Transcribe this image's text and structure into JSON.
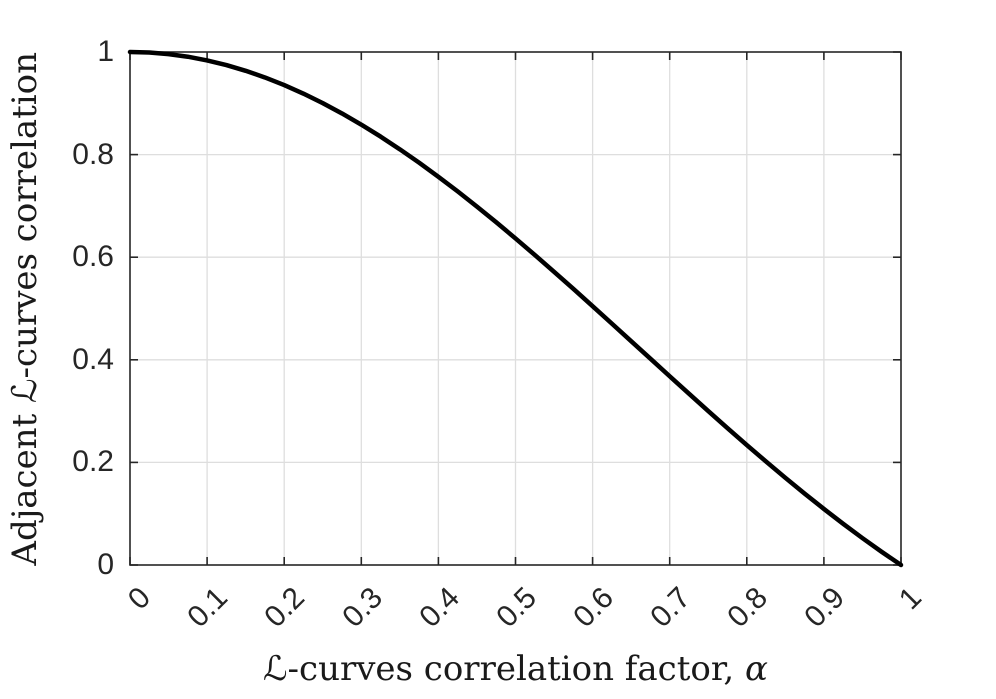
{
  "figure": {
    "background": "#ffffff",
    "axis_color": "#262626",
    "grid_color": "#dedede",
    "tick_label_color": "#262626",
    "curve_color": "#000000"
  },
  "chart_data": {
    "type": "line",
    "title": "",
    "xlabel": "ℒ-curves correlation factor, α",
    "xlabel_main": "ℒ-curves correlation factor, ",
    "xlabel_var": "α",
    "ylabel": "Adjacent ℒ-curves correlation",
    "xlim": [
      0,
      1
    ],
    "ylim": [
      0,
      1
    ],
    "grid": true,
    "legend": "none",
    "x_ticks": {
      "values": [
        0,
        0.1,
        0.2,
        0.3,
        0.4,
        0.5,
        0.6,
        0.7,
        0.8,
        0.9,
        1
      ],
      "labels": [
        "0",
        "0.1",
        "0.2",
        "0.3",
        "0.4",
        "0.5",
        "0.6",
        "0.7",
        "0.8",
        "0.9",
        "1"
      ],
      "rotation_deg": 45
    },
    "y_ticks": {
      "values": [
        0,
        0.2,
        0.4,
        0.6,
        0.8,
        1
      ],
      "labels": [
        "0",
        "0.2",
        "0.4",
        "0.6",
        "0.8",
        "1"
      ]
    },
    "series": [
      {
        "name": "adjacent-L-curves-correlation",
        "color": "#000000",
        "line_width": 4.5,
        "x": [
          0,
          0.025,
          0.05,
          0.075,
          0.1,
          0.125,
          0.15,
          0.175,
          0.2,
          0.225,
          0.25,
          0.275,
          0.3,
          0.325,
          0.35,
          0.375,
          0.4,
          0.425,
          0.45,
          0.475,
          0.5,
          0.525,
          0.55,
          0.575,
          0.6,
          0.625,
          0.65,
          0.675,
          0.7,
          0.725,
          0.75,
          0.775,
          0.8,
          0.825,
          0.85,
          0.875,
          0.9,
          0.925,
          0.95,
          0.975,
          1
        ],
        "y": [
          1,
          0.999,
          0.9959,
          0.9908,
          0.9836,
          0.9745,
          0.9634,
          0.9504,
          0.9355,
          0.9188,
          0.9003,
          0.8802,
          0.8584,
          0.8351,
          0.8103,
          0.7842,
          0.7568,
          0.7283,
          0.6986,
          0.6681,
          0.6366,
          0.6044,
          0.5716,
          0.5383,
          0.5046,
          0.4705,
          0.4363,
          0.4021,
          0.3679,
          0.3339,
          0.3001,
          0.2667,
          0.2339,
          0.2016,
          0.17,
          0.1392,
          0.1093,
          0.0803,
          0.0524,
          0.0256,
          0
        ]
      }
    ]
  }
}
